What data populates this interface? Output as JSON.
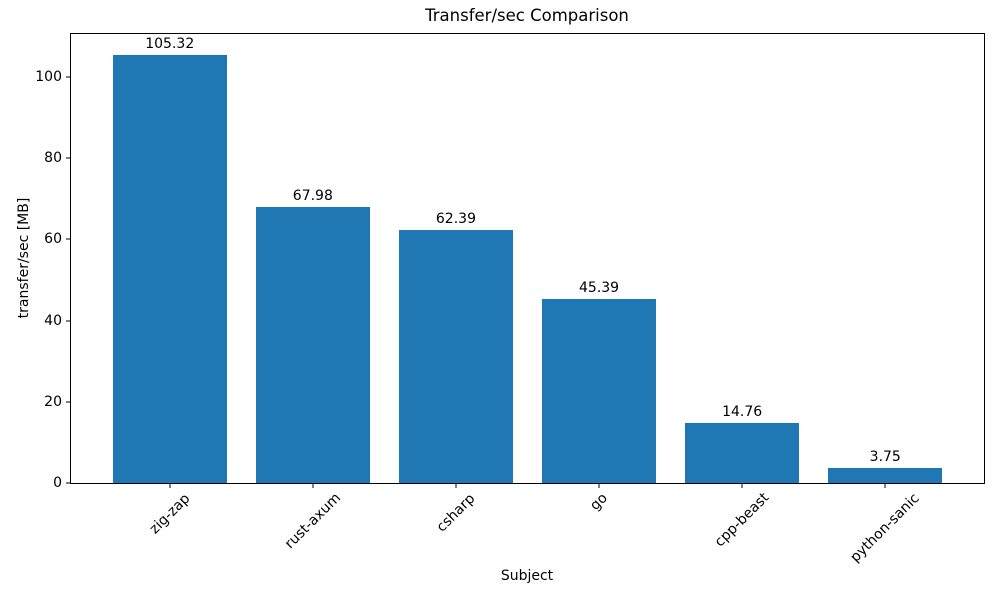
{
  "chart_data": {
    "type": "bar",
    "title": "Transfer/sec Comparison",
    "xlabel": "Subject",
    "ylabel": "transfer/sec [MB]",
    "categories": [
      "zig-zap",
      "rust-axum",
      "csharp",
      "go",
      "cpp-beast",
      "python-sanic"
    ],
    "values": [
      105.32,
      67.98,
      62.39,
      45.39,
      14.76,
      3.75
    ],
    "value_labels": [
      "105.32",
      "67.98",
      "62.39",
      "45.39",
      "14.76",
      "3.75"
    ],
    "bar_color": "#1f77b4",
    "bar_width": 0.8,
    "xlim": [
      -0.69,
      5.69
    ],
    "ylim": [
      0,
      110.59
    ],
    "yticks": [
      0,
      20,
      40,
      60,
      80,
      100
    ],
    "x_tick_rotation": 45,
    "grid": false,
    "legend": "none",
    "background": "#ffffff"
  }
}
